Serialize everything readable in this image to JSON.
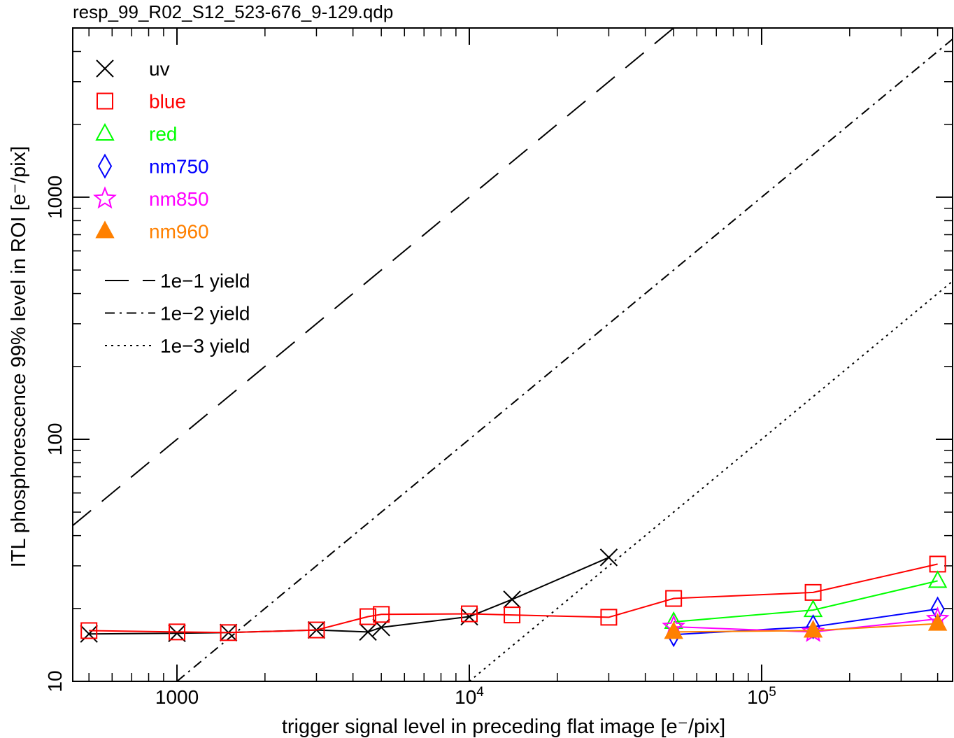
{
  "file_title": "resp_99_R02_S12_523-676_9-129.qdp",
  "chart_data": {
    "type": "scatter",
    "xlabel": "trigger signal level in preceding flat image [e⁻/pix]",
    "ylabel": "ITL phosphorescence 99% level in ROI [e⁻/pix]",
    "x_scale": "log",
    "y_scale": "log",
    "xlim": [
      440,
      450000
    ],
    "ylim": [
      10,
      5000
    ],
    "x_ticks": [
      {
        "value": 1000,
        "label": "1000"
      },
      {
        "value": 10000,
        "label": "10⁴"
      },
      {
        "value": 100000,
        "label": "10⁵"
      }
    ],
    "y_ticks": [
      {
        "value": 10,
        "label": "10"
      },
      {
        "value": 100,
        "label": "100"
      },
      {
        "value": 1000,
        "label": "1000"
      }
    ],
    "legend_position": "top-left",
    "series": [
      {
        "name": "uv",
        "color": "#000000",
        "marker": "x",
        "x": [
          500,
          1000,
          1500,
          3000,
          4500,
          5000,
          10000,
          14000,
          30000
        ],
        "y": [
          15.7,
          15.8,
          15.9,
          16.3,
          16.0,
          16.7,
          18.5,
          21.8,
          32.5
        ]
      },
      {
        "name": "blue",
        "color": "#ff0000",
        "marker": "square",
        "x": [
          500,
          1000,
          1500,
          3000,
          4500,
          5000,
          10000,
          14000,
          30000,
          50000,
          150000,
          400000
        ],
        "y": [
          16.2,
          16.0,
          15.9,
          16.3,
          18.5,
          18.9,
          19.0,
          18.8,
          18.4,
          22.0,
          23.3,
          30.5
        ]
      },
      {
        "name": "red",
        "color": "#00ff00",
        "marker": "triangle",
        "x": [
          50000,
          150000,
          400000
        ],
        "y": [
          17.6,
          19.7,
          26.0
        ]
      },
      {
        "name": "nm750",
        "color": "#0000ff",
        "marker": "diamond",
        "x": [
          50000,
          150000,
          400000
        ],
        "y": [
          15.6,
          16.8,
          19.9
        ]
      },
      {
        "name": "nm850",
        "color": "#ff00ff",
        "marker": "star",
        "x": [
          50000,
          150000,
          400000
        ],
        "y": [
          16.8,
          16.0,
          18.1
        ]
      },
      {
        "name": "nm960",
        "color": "#ff8000",
        "marker": "filled-triangle",
        "x": [
          50000,
          150000,
          400000
        ],
        "y": [
          16.0,
          16.2,
          17.3
        ]
      }
    ],
    "reference_lines": [
      {
        "name": "1e−1 yield",
        "yield": 0.1,
        "dash": "long-dash",
        "color": "#000000"
      },
      {
        "name": "1e−2 yield",
        "yield": 0.01,
        "dash": "dash-dot",
        "color": "#000000"
      },
      {
        "name": "1e−3 yield",
        "yield": 0.001,
        "dash": "dot",
        "color": "#000000"
      }
    ]
  }
}
